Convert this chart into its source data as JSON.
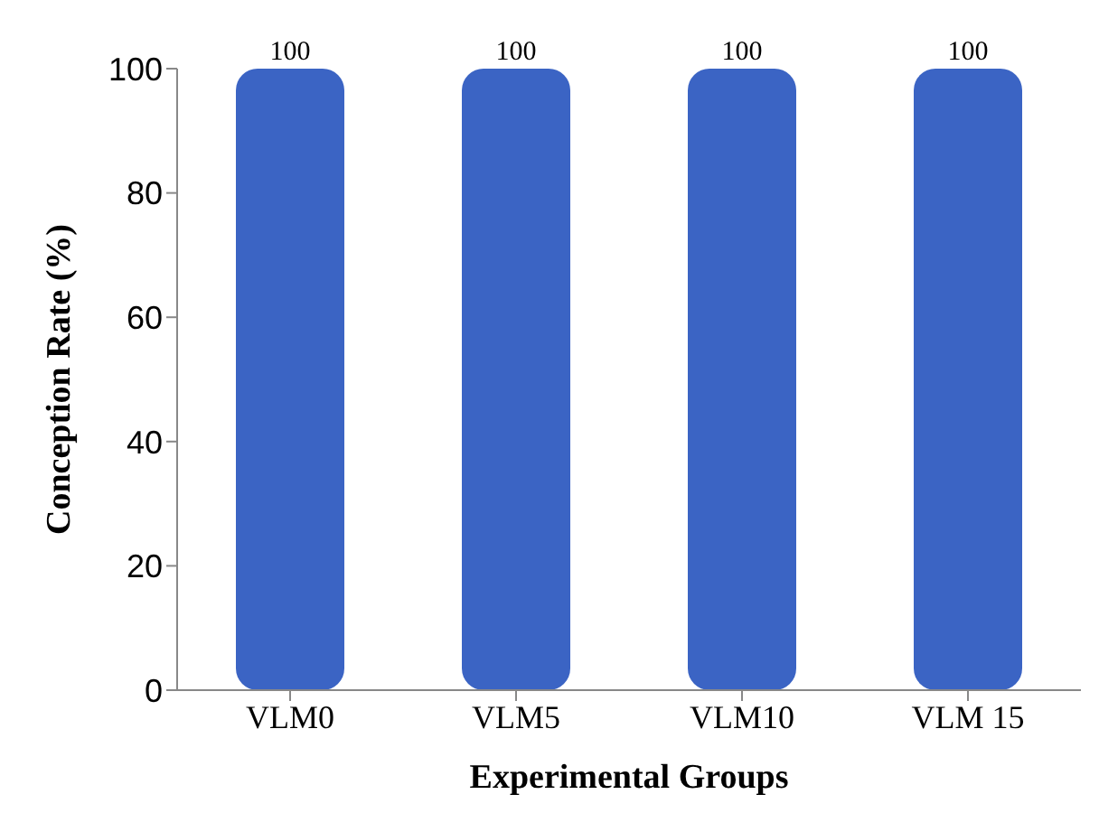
{
  "chart_data": {
    "type": "bar",
    "xlabel": "Experimental Groups",
    "ylabel": "Conception Rate (%)",
    "categories": [
      "VLM0",
      "VLM5",
      "VLM10",
      "VLM 15"
    ],
    "values": [
      100,
      100,
      100,
      100
    ],
    "color": "#3b64c4",
    "ylim": [
      0,
      100
    ],
    "yticks": [
      0,
      20,
      40,
      60,
      80,
      100
    ],
    "data_labels": true,
    "grid": false
  }
}
